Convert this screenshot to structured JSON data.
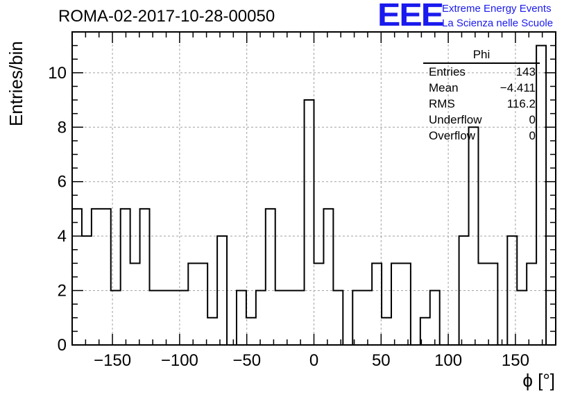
{
  "title": "ROMA-02-2017-10-28-00050",
  "logo": {
    "mark": "EEE",
    "line1": "Extreme Energy Events",
    "line2": "La Scienza nelle Scuole",
    "color": "#1a1aee"
  },
  "stats_box": {
    "name": "Phi",
    "rows": [
      {
        "label": "Entries",
        "value": "143"
      },
      {
        "label": "Mean",
        "value": "−4.411"
      },
      {
        "label": "RMS",
        "value": "116.2"
      },
      {
        "label": "Underflow",
        "value": "0"
      },
      {
        "label": "Overflow",
        "value": "0"
      }
    ]
  },
  "chart_data": {
    "type": "histogram",
    "title": "ROMA-02-2017-10-28-00050",
    "xlabel": "ϕ [°]",
    "ylabel": "Entries/bin",
    "xlim": [
      -180,
      180
    ],
    "ylim": [
      0,
      11.5
    ],
    "bin_width": 7.2,
    "x_ticks": [
      -150,
      -100,
      -50,
      0,
      50,
      100,
      150
    ],
    "x_tick_labels": [
      "−150",
      "−100",
      "−50",
      "0",
      "50",
      "100",
      "150"
    ],
    "y_ticks": [
      0,
      2,
      4,
      6,
      8,
      10
    ],
    "grid": true,
    "values": [
      5,
      4,
      5,
      5,
      2,
      5,
      3,
      5,
      2,
      2,
      2,
      2,
      3,
      3,
      1,
      4,
      0,
      2,
      1,
      2,
      5,
      2,
      2,
      2,
      9,
      3,
      5,
      2,
      0,
      2,
      2,
      3,
      1,
      3,
      3,
      0,
      1,
      2,
      0,
      0,
      4,
      8,
      3,
      3,
      0,
      4,
      2,
      3,
      11,
      0
    ]
  }
}
